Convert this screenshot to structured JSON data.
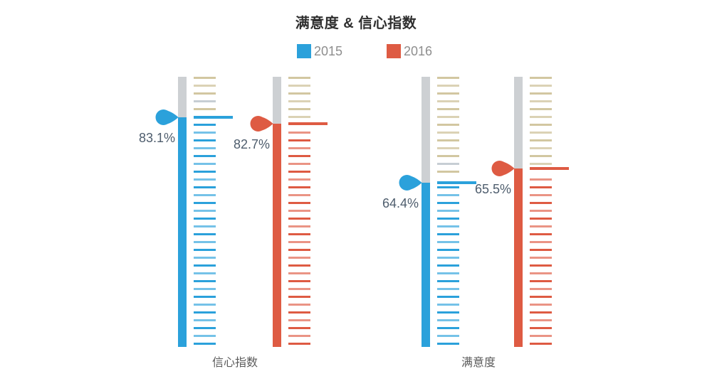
{
  "title": "满意度 & 信心指数",
  "legend": {
    "items": [
      {
        "label": "2015",
        "color": "#2BA1DB"
      },
      {
        "label": "2016",
        "color": "#DE5B43"
      }
    ]
  },
  "chart_data": {
    "type": "bar",
    "variant": "pictorial-thermometer",
    "title": "满意度 & 信心指数",
    "categories": [
      "信心指数",
      "满意度"
    ],
    "series": [
      {
        "name": "2015",
        "color": "#2BA1DB",
        "values": [
          83.1,
          64.4
        ],
        "data_labels": [
          "83.1%",
          "64.4%"
        ]
      },
      {
        "name": "2016",
        "color": "#DE5B43",
        "values": [
          82.7,
          65.5
        ],
        "data_labels": [
          "82.7%",
          "65.5%"
        ]
      }
    ],
    "unit": "%",
    "ylim": [
      0,
      100
    ],
    "grid": false,
    "legend_position": "top",
    "track_color": "#CDD0D3",
    "unfilled_tick_color": "#D2C7A1",
    "unfilled_tick_alt_color": "#DBD2B5",
    "special_tick_color": "#C7CED4",
    "value_label_color": "#4E5D6D"
  }
}
